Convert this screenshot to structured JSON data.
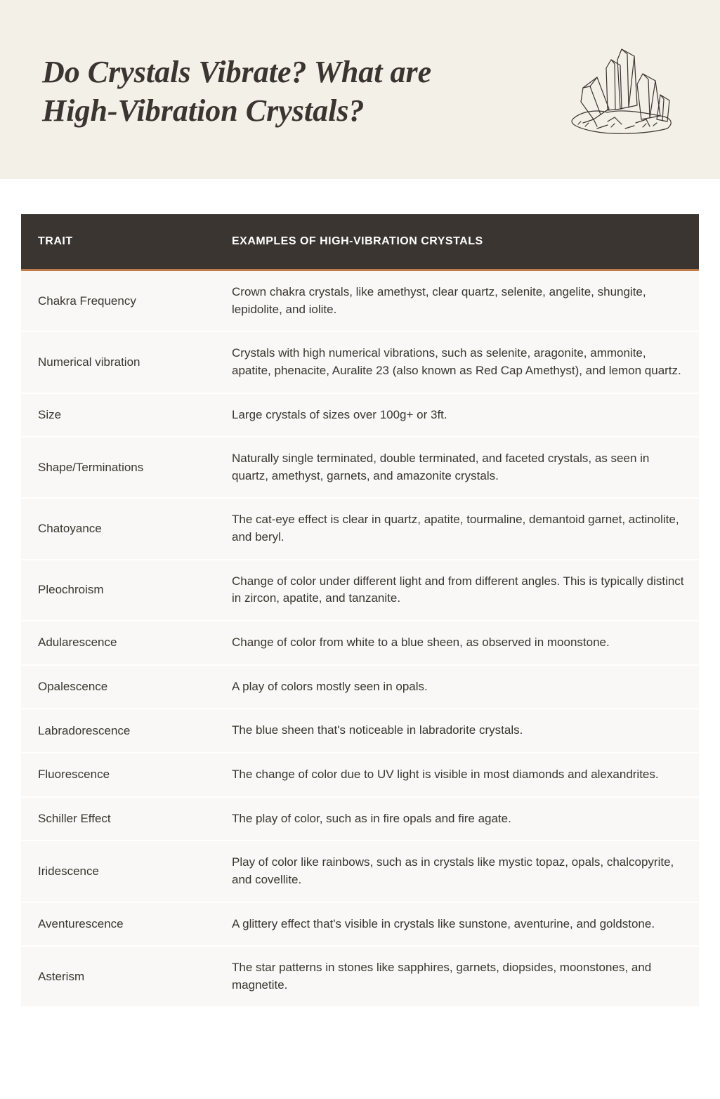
{
  "header": {
    "title": "Do Crystals Vibrate? What are High-Vibration Crystals?",
    "background_color": "#f3f0e7",
    "title_color": "#3a3530",
    "title_fontsize": 44,
    "title_font_style": "italic",
    "title_font_weight": 700
  },
  "table": {
    "header_background": "#3a3530",
    "header_text_color": "#ffffff",
    "header_accent_color": "#c17a4a",
    "row_background": "#f9f8f6",
    "row_text_color": "#3a3530",
    "column_trait_width": 280,
    "cell_fontsize": 17,
    "header_fontsize": 16,
    "columns": {
      "trait": "TRAIT",
      "examples": "EXAMPLES OF HIGH-VIBRATION CRYSTALS"
    },
    "rows": [
      {
        "trait": "Chakra Frequency",
        "examples": "Crown chakra crystals, like amethyst, clear quartz, selenite, angelite, shungite, lepidolite, and iolite."
      },
      {
        "trait": "Numerical vibration",
        "examples": "Crystals with high numerical vibrations, such as selenite, aragonite, ammonite, apatite, phenacite, Auralite 23 (also known as Red Cap Amethyst), and lemon quartz."
      },
      {
        "trait": "Size",
        "examples": "Large crystals of sizes over 100g+ or 3ft."
      },
      {
        "trait": "Shape/Terminations",
        "examples": "Naturally single terminated, double terminated, and faceted crystals, as seen in quartz, amethyst, garnets, and amazonite crystals."
      },
      {
        "trait": "Chatoyance",
        "examples": "The cat-eye effect is clear in quartz, apatite, tourmaline, demantoid garnet, actinolite, and beryl."
      },
      {
        "trait": "Pleochroism",
        "examples": "Change of color under different light and from different angles. This is typically distinct in zircon, apatite, and tanzanite."
      },
      {
        "trait": "Adularescence",
        "examples": "Change of color from white to a blue sheen, as observed in moonstone."
      },
      {
        "trait": "Opalescence",
        "examples": "A play of colors mostly seen in opals."
      },
      {
        "trait": "Labradorescence",
        "examples": "The blue sheen that's noticeable in labradorite crystals."
      },
      {
        "trait": "Fluorescence",
        "examples": "The change of color due to UV light is visible in most diamonds and alexandrites."
      },
      {
        "trait": "Schiller Effect",
        "examples": "The play of color, such as in fire opals and fire agate."
      },
      {
        "trait": "Iridescence",
        "examples": "Play of color like rainbows, such as in crystals like mystic topaz, opals, chalcopyrite, and covellite."
      },
      {
        "trait": "Aventurescence",
        "examples": "A glittery effect that's visible in crystals like sunstone, aventurine, and goldstone."
      },
      {
        "trait": "Asterism",
        "examples": "The star patterns in stones like sapphires, garnets, diopsides, moonstones, and magnetite."
      }
    ]
  }
}
